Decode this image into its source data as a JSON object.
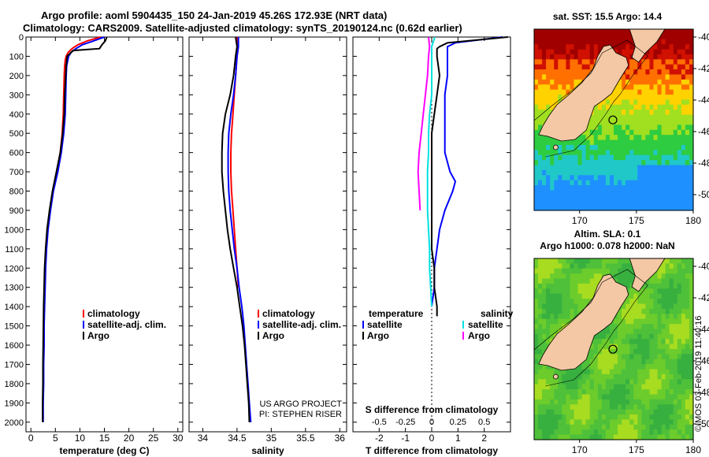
{
  "header": {
    "line1": "Argo profile: aoml 5904435_150 24-Jan-2019 45.26S 172.93E (NRT data)",
    "line2": "Climatology: CARS2009. Satellite-adjusted climatology: synTS_20190124.nc (0.62d earlier)"
  },
  "stamp": "©IMOS 03-Feb-2019 11:40:16",
  "colors": {
    "climatology": "#ff0000",
    "satellite": "#0000ff",
    "argo": "#000000",
    "sat_salinity": "#00e0e0",
    "argo_salinity": "#ff00ff",
    "land": "#f4c8a4"
  },
  "chart_data": [
    {
      "type": "line",
      "name": "temperature-profile",
      "title": "",
      "xlabel": "temperature (deg C)",
      "ylabel": "",
      "xlim": [
        -1,
        31
      ],
      "ylim": [
        2050,
        0
      ],
      "xticks": [
        0,
        5,
        10,
        15,
        20,
        25,
        30
      ],
      "yticks": [
        0,
        100,
        200,
        300,
        400,
        500,
        600,
        700,
        800,
        900,
        1000,
        1100,
        1200,
        1300,
        1400,
        1500,
        1600,
        1700,
        1800,
        1900,
        2000
      ],
      "legend": [
        "climatology",
        "satellite-adj. clim.",
        "Argo"
      ],
      "series": [
        {
          "name": "climatology",
          "depth": [
            0,
            20,
            40,
            60,
            80,
            100,
            120,
            150,
            200,
            300,
            400,
            500,
            600,
            700,
            800,
            900,
            1000,
            1100,
            1200,
            1300
          ],
          "values": [
            14.2,
            11.5,
            9.6,
            8.4,
            7.6,
            7.2,
            7.0,
            6.9,
            6.8,
            6.7,
            6.6,
            6.4,
            6.0,
            5.3,
            4.5,
            3.9,
            3.4,
            3.1,
            2.9,
            2.8
          ]
        },
        {
          "name": "satellite-adj. clim.",
          "depth": [
            0,
            20,
            40,
            60,
            80,
            100,
            150,
            200,
            300,
            400,
            500,
            600,
            700,
            800,
            900,
            1000,
            1100,
            1200,
            1300,
            1400,
            1500,
            1600,
            1700,
            1800,
            1900,
            2000
          ],
          "values": [
            15.0,
            12.8,
            10.5,
            9.2,
            8.2,
            7.7,
            7.3,
            7.2,
            7.1,
            7.0,
            6.7,
            6.2,
            5.5,
            4.6,
            4.0,
            3.5,
            3.2,
            3.0,
            2.9,
            2.8,
            2.7,
            2.7,
            2.6,
            2.6,
            2.5,
            2.5
          ]
        },
        {
          "name": "Argo",
          "depth": [
            0,
            20,
            40,
            60,
            70,
            100,
            150,
            200,
            300,
            400,
            500,
            600,
            700,
            800,
            900,
            1000,
            1100,
            1200,
            1300,
            1400,
            1500,
            1600,
            1700,
            1800,
            1900,
            2000
          ],
          "values": [
            15.5,
            15.2,
            14.5,
            14.0,
            8.6,
            7.4,
            7.2,
            7.1,
            6.9,
            6.8,
            6.5,
            6.0,
            5.2,
            4.4,
            3.8,
            3.3,
            3.0,
            2.8,
            2.7,
            2.6,
            2.55,
            2.5,
            2.45,
            2.45,
            2.4,
            2.4
          ]
        }
      ]
    },
    {
      "type": "line",
      "name": "salinity-profile",
      "title": "",
      "xlabel": "salinity",
      "ylabel": "",
      "xlim": [
        33.8,
        36.1
      ],
      "ylim": [
        2050,
        0
      ],
      "xticks": [
        34,
        34.5,
        35,
        35.5,
        36
      ],
      "xtick_labels": [
        "34",
        "34.5",
        "35",
        "35.5",
        "36"
      ],
      "legend": [
        "climatology",
        "satellite-adj. clim.",
        "Argo"
      ],
      "annotation": [
        "US ARGO PROJECT",
        "PI: STEPHEN RISER"
      ],
      "series": [
        {
          "name": "climatology",
          "depth": [
            0,
            50,
            100,
            200,
            300,
            400,
            500,
            600,
            700,
            800,
            900,
            1000,
            1100,
            1200,
            1300
          ],
          "values": [
            34.5,
            34.52,
            34.5,
            34.48,
            34.46,
            34.44,
            34.42,
            34.41,
            34.41,
            34.42,
            34.44,
            34.46,
            34.48,
            34.5,
            34.52
          ]
        },
        {
          "name": "satellite-adj. clim.",
          "depth": [
            0,
            50,
            100,
            200,
            300,
            400,
            500,
            600,
            700,
            800,
            900,
            1000,
            1100,
            1200,
            1300,
            1400,
            1500,
            1600,
            1700,
            1800,
            1900,
            2000
          ],
          "values": [
            34.52,
            34.52,
            34.5,
            34.48,
            34.45,
            34.41,
            34.38,
            34.37,
            34.37,
            34.38,
            34.4,
            34.43,
            34.46,
            34.5,
            34.53,
            34.57,
            34.6,
            34.62,
            34.64,
            34.66,
            34.68,
            34.7
          ]
        },
        {
          "name": "Argo",
          "depth": [
            0,
            50,
            100,
            200,
            300,
            400,
            500,
            600,
            700,
            800,
            900,
            1000,
            1100,
            1200,
            1300,
            1400,
            1500,
            1600,
            1700,
            1800,
            1900,
            2000
          ],
          "values": [
            34.48,
            34.5,
            34.48,
            34.45,
            34.4,
            34.33,
            34.29,
            34.28,
            34.28,
            34.3,
            34.33,
            34.36,
            34.4,
            34.45,
            34.5,
            34.54,
            34.58,
            34.61,
            34.63,
            34.65,
            34.67,
            34.68
          ]
        }
      ]
    },
    {
      "type": "line",
      "name": "difference-profile",
      "title": "",
      "xlabel": "T difference from climatology",
      "xlabel2": "S difference from climatology",
      "xlim": [
        -3,
        3
      ],
      "ylim": [
        2050,
        0
      ],
      "xticks": [
        -2,
        -1,
        0,
        1,
        2
      ],
      "s_xticks": [
        -0.5,
        -0.25,
        0,
        0.25,
        0.5
      ],
      "s_xtick_labels": [
        "-0.5",
        "-0.25",
        "0",
        "0.25",
        "0.5"
      ],
      "legend_temperature": {
        "title": "temperature",
        "items": [
          "satellite",
          "Argo"
        ]
      },
      "legend_salinity": {
        "title": "salinity",
        "items": [
          "satellite",
          "Argo"
        ]
      },
      "series": [
        {
          "name": "T satellite",
          "depth": [
            0,
            30,
            50,
            80,
            100,
            200,
            300,
            400,
            500,
            600,
            700,
            750,
            800,
            900,
            1000,
            1100,
            1200,
            1300,
            1400
          ],
          "values": [
            2.7,
            0.9,
            0.6,
            0.6,
            0.6,
            0.6,
            0.5,
            0.5,
            0.5,
            0.5,
            0.7,
            0.9,
            0.8,
            0.5,
            0.3,
            0.2,
            0.1,
            0.1,
            0.0
          ]
        },
        {
          "name": "T Argo",
          "depth": [
            0,
            30,
            50,
            60,
            80,
            100,
            200,
            300,
            400,
            500,
            600,
            700,
            800,
            900,
            1000,
            1100,
            1200,
            1300,
            1400,
            1450
          ],
          "values": [
            2.9,
            0.6,
            0.3,
            0.2,
            0.2,
            0.2,
            0.3,
            0.2,
            0.1,
            0.0,
            0.0,
            0.0,
            0.0,
            0.0,
            0.0,
            0.0,
            0.1,
            0.1,
            0.2,
            0.2
          ]
        },
        {
          "name": "S satellite",
          "depth": [
            0,
            50,
            100,
            200,
            300,
            400,
            500,
            600,
            700,
            800,
            900,
            1000,
            1100,
            1200,
            1300,
            1400
          ],
          "values": [
            0.03,
            0.0,
            0.0,
            0.0,
            0.0,
            -0.02,
            -0.03,
            -0.03,
            -0.04,
            -0.04,
            -0.04,
            -0.03,
            -0.02,
            -0.02,
            -0.01,
            0.0
          ]
        },
        {
          "name": "S Argo",
          "depth": [
            0,
            50,
            100,
            200,
            300,
            400,
            500,
            600,
            700,
            800,
            900
          ],
          "values": [
            -0.03,
            -0.02,
            -0.03,
            -0.04,
            -0.06,
            -0.08,
            -0.1,
            -0.12,
            -0.13,
            -0.12,
            -0.11
          ]
        }
      ]
    },
    {
      "type": "heatmap",
      "name": "sst-map",
      "title": "sat. SST: 15.5 Argo: 14.4",
      "xlim": [
        166,
        180
      ],
      "ylim": [
        -51,
        -39.5
      ],
      "xticks": [
        170,
        175,
        180
      ],
      "yticks": [
        -40,
        -42,
        -44,
        -46,
        -48,
        -50
      ]
    },
    {
      "type": "heatmap",
      "name": "sla-map",
      "title": "Altim. SLA: 0.1",
      "subtitle": "Argo h1000: 0.078 h2000: NaN",
      "xlim": [
        166,
        180
      ],
      "ylim": [
        -51,
        -39.5
      ],
      "xticks": [
        170,
        175,
        180
      ],
      "yticks": [
        -40,
        -42,
        -44,
        -46,
        -48,
        -50
      ]
    }
  ]
}
